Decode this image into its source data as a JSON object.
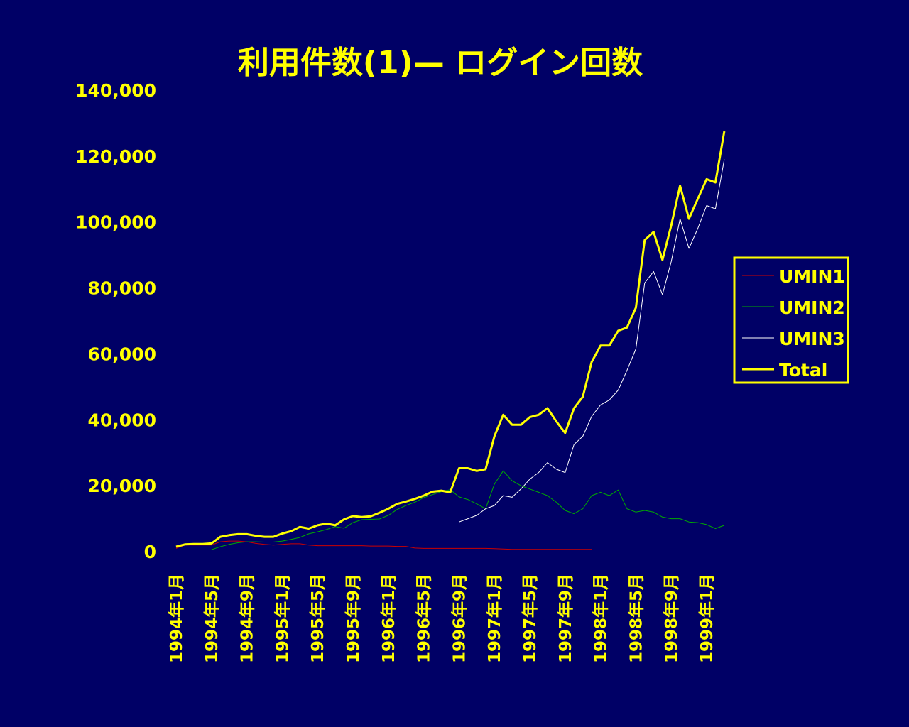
{
  "chart_data": {
    "type": "line",
    "title": "利用件数(1)— ログイン回数",
    "xlabel": "",
    "ylabel": "",
    "ylim": [
      0,
      140000
    ],
    "yticks": [
      0,
      20000,
      40000,
      60000,
      80000,
      100000,
      120000,
      140000
    ],
    "ytick_labels": [
      "0",
      "20,000",
      "40,000",
      "60,000",
      "80,000",
      "100,000",
      "120,000",
      "140,000"
    ],
    "grid": false,
    "legend_position": "right",
    "months": [
      "1994年1月",
      "1994年2月",
      "1994年3月",
      "1994年4月",
      "1994年5月",
      "1994年6月",
      "1994年7月",
      "1994年8月",
      "1994年9月",
      "1994年10月",
      "1994年11月",
      "1994年12月",
      "1995年1月",
      "1995年2月",
      "1995年3月",
      "1995年4月",
      "1995年5月",
      "1995年6月",
      "1995年7月",
      "1995年8月",
      "1995年9月",
      "1995年10月",
      "1995年11月",
      "1995年12月",
      "1996年1月",
      "1996年2月",
      "1996年3月",
      "1996年4月",
      "1996年5月",
      "1996年6月",
      "1996年7月",
      "1996年8月",
      "1996年9月",
      "1996年10月",
      "1996年11月",
      "1996年12月",
      "1997年1月",
      "1997年2月",
      "1997年3月",
      "1997年4月",
      "1997年5月",
      "1997年6月",
      "1997年7月",
      "1997年8月",
      "1997年9月",
      "1997年10月",
      "1997年11月",
      "1997年12月",
      "1998年1月",
      "1998年2月",
      "1998年3月",
      "1998年4月",
      "1998年5月",
      "1998年6月",
      "1998年7月",
      "1998年8月",
      "1998年9月",
      "1998年10月",
      "1998年11月",
      "1998年12月",
      "1999年1月",
      "1999年2月",
      "1999年3月"
    ],
    "tick_labels": [
      "1994年1月",
      "1994年5月",
      "1994年9月",
      "1995年1月",
      "1995年5月",
      "1995年9月",
      "1996年1月",
      "1996年5月",
      "1996年9月",
      "1997年1月",
      "1997年5月",
      "1997年9月",
      "1998年1月",
      "1998年5月",
      "1998年9月",
      "1999年1月"
    ],
    "series": [
      {
        "name": "UMIN1",
        "color": "#cc0000",
        "width": 1,
        "values": [
          1000,
          2000,
          2000,
          2000,
          2000,
          3000,
          3200,
          3200,
          3000,
          2500,
          2200,
          2000,
          2200,
          2400,
          2400,
          2000,
          1800,
          1800,
          1800,
          1800,
          1800,
          1800,
          1700,
          1700,
          1700,
          1600,
          1600,
          1100,
          1000,
          1000,
          1000,
          1000,
          1000,
          1000,
          1000,
          1000,
          900,
          800,
          700,
          700,
          700,
          700,
          700,
          700,
          700,
          700,
          700,
          700,
          null,
          null,
          null,
          null,
          null,
          null,
          null,
          null,
          null,
          null,
          null,
          null,
          null,
          null,
          null
        ]
      },
      {
        "name": "UMIN2",
        "color": "#00aa00",
        "width": 1,
        "values": [
          null,
          null,
          null,
          null,
          600,
          1500,
          2200,
          2700,
          3000,
          3000,
          2900,
          2900,
          3200,
          3700,
          4300,
          5400,
          6000,
          6700,
          7600,
          7100,
          8800,
          9700,
          9800,
          9900,
          11000,
          12800,
          14000,
          15000,
          16400,
          17300,
          18200,
          18800,
          16600,
          15800,
          14500,
          13000,
          20500,
          24500,
          21500,
          20000,
          19000,
          18000,
          17000,
          15000,
          12500,
          11500,
          13000,
          17000,
          18000,
          17000,
          18700,
          13000,
          12000,
          12500,
          12000,
          10500,
          10000,
          10000,
          9000,
          8800,
          8200,
          7000,
          8000
        ]
      },
      {
        "name": "UMIN3",
        "color": "#ffffff",
        "width": 1,
        "values": [
          null,
          null,
          null,
          null,
          null,
          null,
          null,
          null,
          null,
          null,
          null,
          null,
          null,
          null,
          null,
          null,
          null,
          null,
          null,
          null,
          null,
          null,
          null,
          null,
          null,
          null,
          null,
          null,
          null,
          null,
          null,
          null,
          9000,
          10000,
          11000,
          13000,
          14000,
          17000,
          16500,
          19000,
          22000,
          24000,
          27000,
          25000,
          24000,
          32500,
          35000,
          41000,
          44500,
          46000,
          49000,
          55000,
          61500,
          81500,
          85000,
          78000,
          88000,
          101000,
          92000,
          98000,
          105000,
          104000,
          119000
        ]
      },
      {
        "name": "Total",
        "color": "#ffff00",
        "width": 3,
        "values": [
          1500,
          2200,
          2300,
          2300,
          2500,
          4500,
          5000,
          5300,
          5300,
          4800,
          4500,
          4500,
          5500,
          6200,
          7500,
          7000,
          8000,
          8500,
          8000,
          9800,
          10800,
          10500,
          10700,
          11800,
          13000,
          14500,
          15200,
          16000,
          17000,
          18200,
          18500,
          18000,
          25300,
          25300,
          24500,
          25000,
          35000,
          41500,
          38500,
          38500,
          40800,
          41500,
          43500,
          39500,
          36000,
          43500,
          47000,
          57500,
          62500,
          62500,
          67000,
          68000,
          74000,
          94500,
          97000,
          88500,
          99000,
          111000,
          101000,
          107000,
          113000,
          112000,
          127500
        ]
      }
    ]
  }
}
